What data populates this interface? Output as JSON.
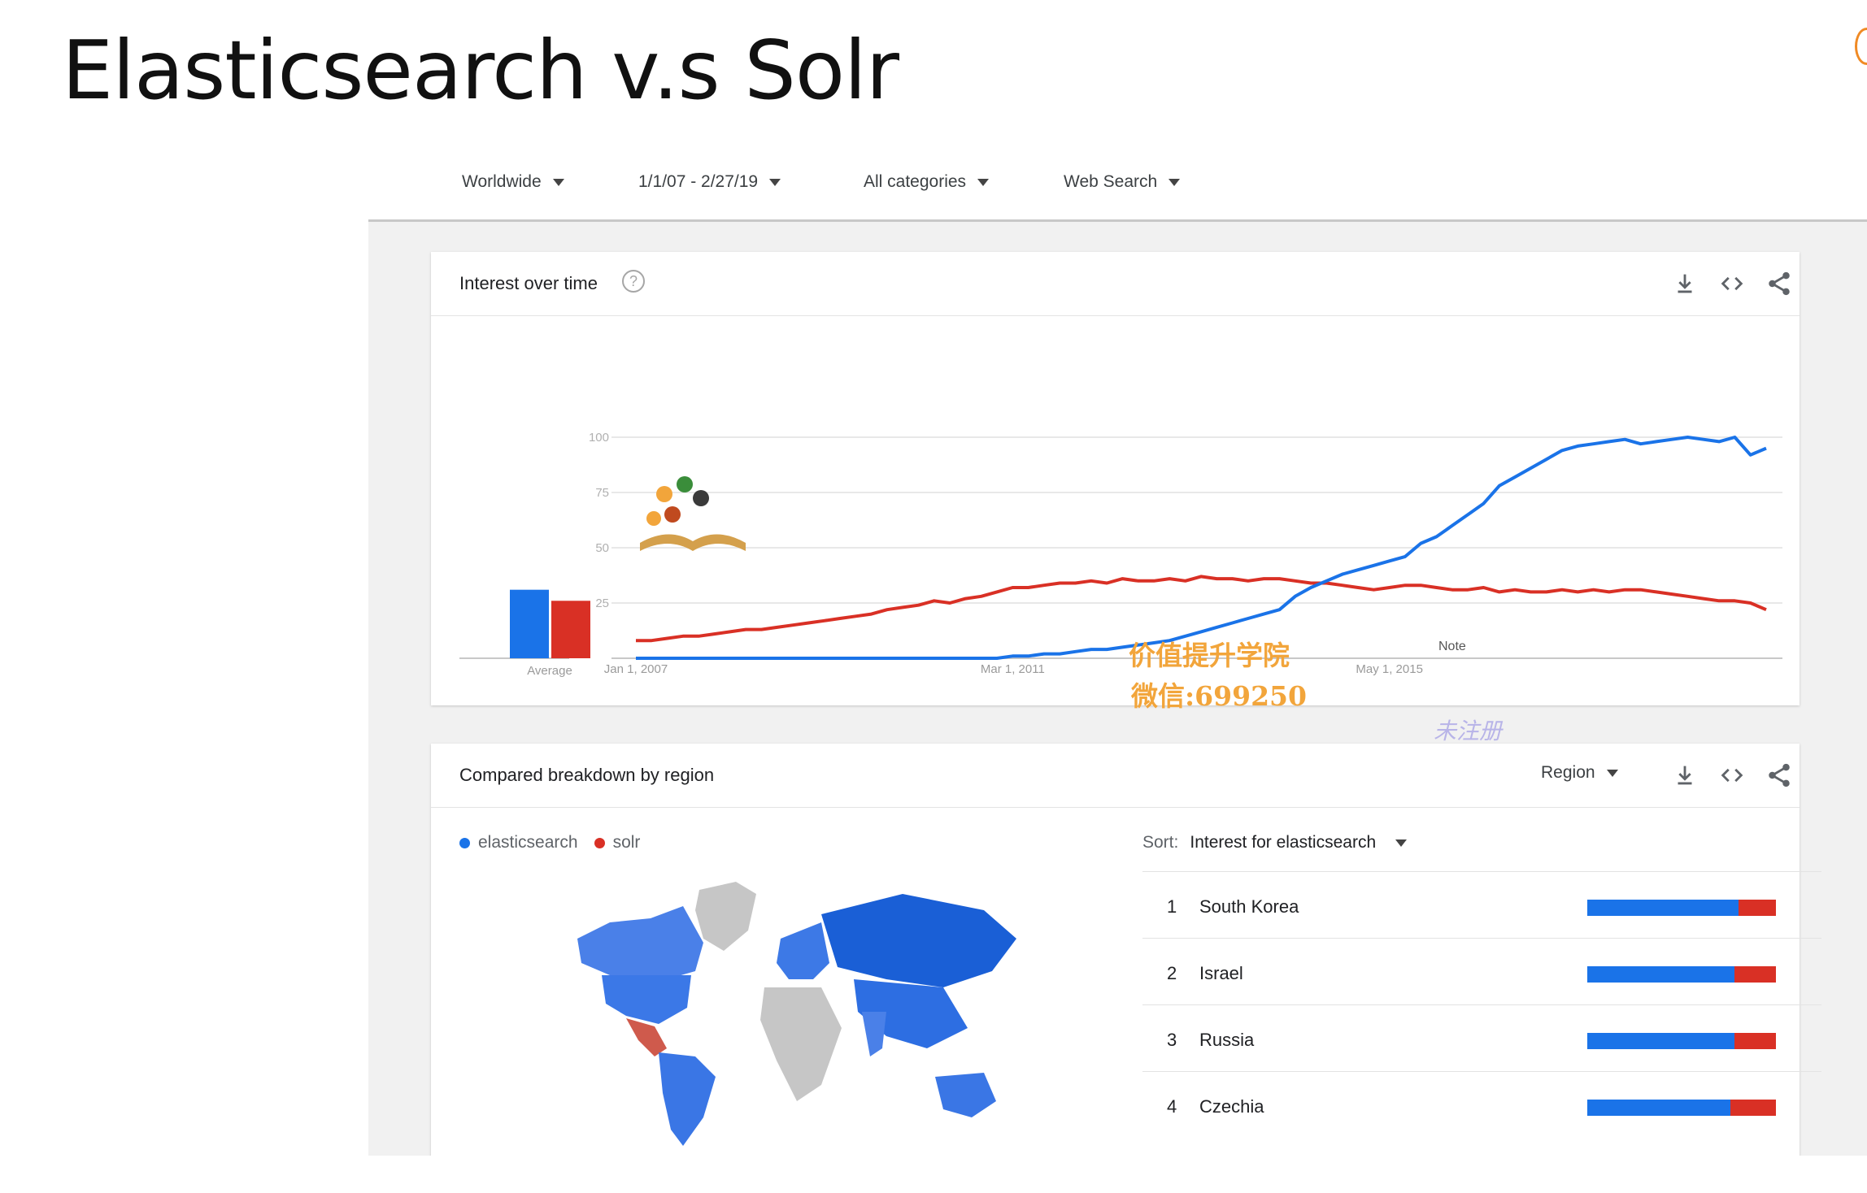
{
  "slide": {
    "title": "Elasticsearch v.s Solr"
  },
  "filters": [
    {
      "label": "Worldwide"
    },
    {
      "label": "1/1/07 - 2/27/19"
    },
    {
      "label": "All categories"
    },
    {
      "label": "Web Search"
    }
  ],
  "interest_card": {
    "title": "Interest over time",
    "help_icon": "help-circle-icon",
    "average_label": "Average",
    "note_label": "Note",
    "icons": [
      "download-icon",
      "embed-code-icon",
      "share-icon"
    ]
  },
  "watermark": {
    "line1": "价值提升学院",
    "line2": "微信:699250",
    "line3": "未注册"
  },
  "chart_data": {
    "type": "line",
    "yticks": [
      "100",
      "75",
      "50",
      "25"
    ],
    "xticks": [
      "Jan 1, 2007",
      "Mar 1, 2011",
      "May 1, 2015"
    ],
    "ylim": [
      0,
      100
    ],
    "average": {
      "elasticsearch": 31,
      "solr": 26
    },
    "series": [
      {
        "name": "elasticsearch",
        "color": "#1a73e8",
        "values": [
          0,
          0,
          0,
          0,
          0,
          0,
          0,
          0,
          0,
          0,
          0,
          0,
          0,
          0,
          0,
          0,
          0,
          0,
          0,
          0,
          0,
          0,
          0,
          0,
          1,
          1,
          2,
          2,
          3,
          4,
          4,
          5,
          6,
          7,
          8,
          10,
          12,
          14,
          16,
          18,
          20,
          22,
          28,
          32,
          35,
          38,
          40,
          42,
          44,
          46,
          52,
          55,
          60,
          65,
          70,
          78,
          82,
          86,
          90,
          94,
          96,
          97,
          98,
          99,
          97,
          98,
          99,
          100,
          99,
          98,
          100,
          92,
          95
        ]
      },
      {
        "name": "solr",
        "color": "#d93025",
        "values": [
          8,
          8,
          9,
          10,
          10,
          11,
          12,
          13,
          13,
          14,
          15,
          16,
          17,
          18,
          19,
          20,
          22,
          23,
          24,
          26,
          25,
          27,
          28,
          30,
          32,
          32,
          33,
          34,
          34,
          35,
          34,
          36,
          35,
          35,
          36,
          35,
          37,
          36,
          36,
          35,
          36,
          36,
          35,
          34,
          34,
          33,
          32,
          31,
          32,
          33,
          33,
          32,
          31,
          31,
          32,
          30,
          31,
          30,
          30,
          31,
          30,
          31,
          30,
          31,
          31,
          30,
          29,
          28,
          27,
          26,
          26,
          25,
          22
        ]
      }
    ]
  },
  "region_card": {
    "title": "Compared breakdown by region",
    "region_dropdown": "Region",
    "legend": [
      {
        "label": "elasticsearch",
        "color": "#1a73e8"
      },
      {
        "label": "solr",
        "color": "#d93025"
      }
    ],
    "sort_label": "Sort:",
    "sort_value": "Interest for elasticsearch",
    "rows": [
      {
        "rank": "1",
        "name": "South Korea",
        "es_share": 0.8,
        "solr_share": 0.2
      },
      {
        "rank": "2",
        "name": "Israel",
        "es_share": 0.78,
        "solr_share": 0.22
      },
      {
        "rank": "3",
        "name": "Russia",
        "es_share": 0.78,
        "solr_share": 0.22
      },
      {
        "rank": "4",
        "name": "Czechia",
        "es_share": 0.76,
        "solr_share": 0.24
      }
    ]
  }
}
